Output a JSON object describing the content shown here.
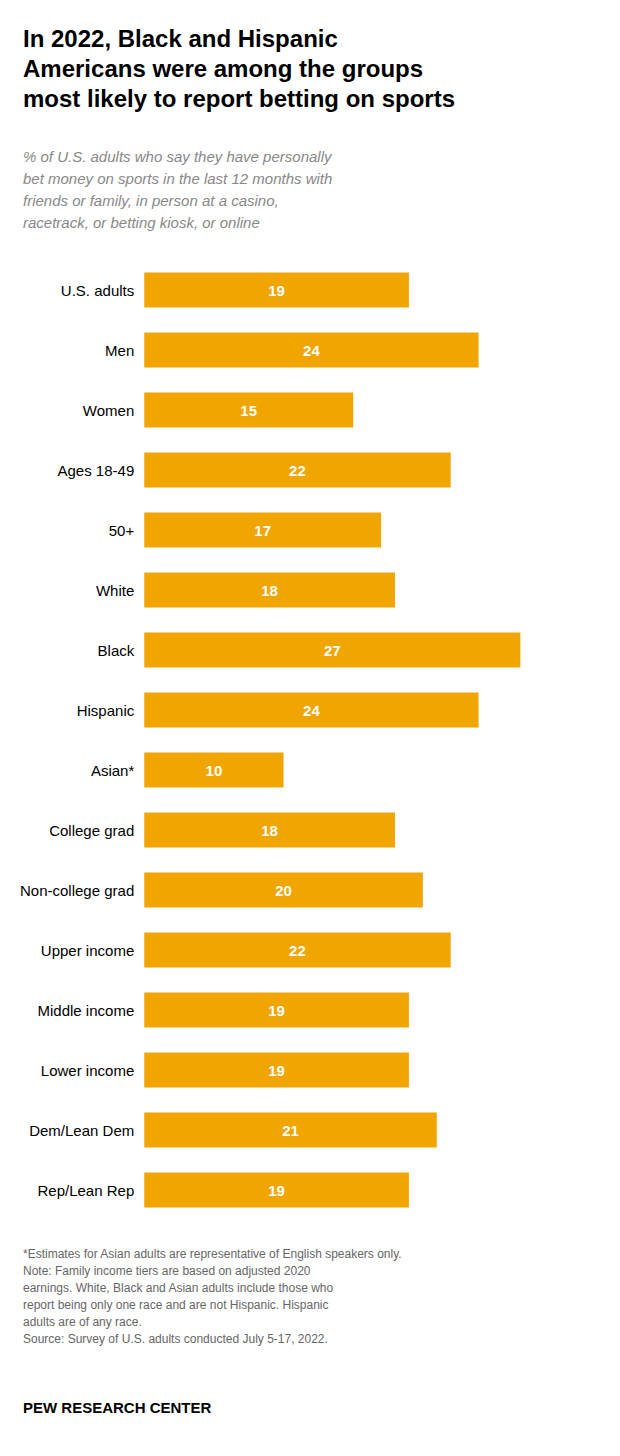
{
  "chart_data": {
    "type": "bar",
    "title": "In 2022, Black and Hispanic\nAmericans were among the groups\nmost likely to report betting on sports",
    "subtitle": "% of U.S. adults who say they have personally\nbet money on sports in the last 12 months with\nfriends or family, in person at a casino,\nracetrack, or betting kiosk, or online",
    "categories": [
      "U.S. adults",
      "Men",
      "Women",
      "Ages 18-49",
      "50+",
      "White",
      "Black",
      "Hispanic",
      "Asian*",
      "College grad",
      "Non-college grad",
      "Upper income",
      "Middle income",
      "Lower income",
      "Dem/Lean Dem",
      "Rep/Lean Rep"
    ],
    "values": [
      19,
      24,
      15,
      22,
      17,
      18,
      27,
      24,
      10,
      18,
      20,
      22,
      19,
      19,
      21,
      19
    ],
    "color": "#F0A500",
    "orientation": "horizontal",
    "data_labels": true,
    "xlim": [
      0,
      32
    ],
    "grid": false,
    "tick_labels": "y",
    "annotations": [
      "*Estimates for Asian adults are representative of English speakers only.\nNote: Family income tiers are based on adjusted 2020\nearnings. White, Black and Asian adults include those who\nreport being only one race and are not Hispanic. Hispanic\nadults are of any race.\nSource: Survey of U.S. adults conducted July 5-17, 2022.",
      "PEW RESEARCH CENTER"
    ]
  }
}
